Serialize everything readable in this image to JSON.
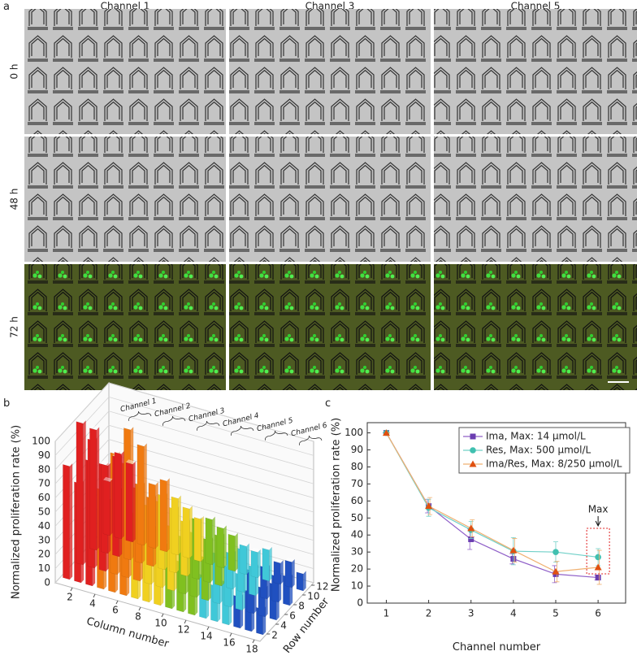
{
  "panel_a": {
    "label": "a",
    "columns": [
      "Channel 1",
      "Channel 3",
      "Channel 5"
    ],
    "rows": [
      "0 h",
      "48 h",
      "72 h"
    ]
  },
  "chart_data": [
    {
      "type": "bar3d",
      "label": "b",
      "zlabel": "Normalized proliferation rate (%)",
      "xlabel": "Column number",
      "ylabel": "Row number",
      "zlim": [
        0,
        100
      ],
      "zticks": [
        0,
        10,
        20,
        30,
        40,
        50,
        60,
        70,
        80,
        90,
        100
      ],
      "xlim": [
        0,
        18
      ],
      "xticks": [
        2,
        4,
        6,
        8,
        10,
        12,
        14,
        16,
        18
      ],
      "ylim": [
        0,
        12
      ],
      "yticks": [
        2,
        4,
        6,
        8,
        10,
        12
      ],
      "groups": [
        "Channel 1",
        "Channel 2",
        "Channel 3",
        "Channel 4",
        "Channel 5",
        "Channel 6"
      ],
      "colors": [
        "#e02020",
        "#f07a10",
        "#f0d020",
        "#80c020",
        "#40c8d8",
        "#2050c0"
      ],
      "values": [
        [
          80,
          70,
          88,
          70,
          65,
          75,
          60,
          50,
          55,
          45,
          35,
          40,
          30,
          25,
          30,
          22,
          28,
          18
        ],
        [
          100,
          90,
          75,
          85,
          80,
          65,
          55,
          60,
          45,
          40,
          45,
          30,
          35,
          28,
          25,
          30,
          20,
          25
        ],
        [
          85,
          62,
          70,
          92,
          55,
          48,
          52,
          45,
          38,
          42,
          30,
          35,
          25,
          30,
          20,
          22,
          18,
          20
        ],
        [
          38,
          60,
          55,
          70,
          45,
          50,
          40,
          35,
          30,
          32,
          28,
          25,
          20,
          18,
          22,
          15,
          18,
          12
        ]
      ]
    },
    {
      "type": "line",
      "label": "c",
      "xlabel": "Channel number",
      "ylabel": "Normalized proliferation rate (%)",
      "x": [
        1,
        2,
        3,
        4,
        5,
        6
      ],
      "xlim": [
        0.55,
        6.65
      ],
      "xticks": [
        1,
        2,
        3,
        4,
        5,
        6
      ],
      "ylim": [
        0,
        106
      ],
      "yticks": [
        0,
        10,
        20,
        30,
        40,
        50,
        60,
        70,
        80,
        90,
        100
      ],
      "series": [
        {
          "name": "Ima, Max: 14 μmol/L",
          "color": "#6a3db0",
          "line_color": "#9060c8",
          "marker": "square",
          "values": [
            100,
            57,
            37.5,
            26,
            17,
            15
          ],
          "errors": [
            0,
            4,
            6,
            3,
            5,
            1.5
          ]
        },
        {
          "name": "Res, Max: 500 μmol/L",
          "color": "#40c0b0",
          "line_color": "#70d0c8",
          "marker": "circle",
          "values": [
            100,
            56,
            43,
            30.5,
            30,
            27
          ],
          "errors": [
            0,
            5,
            5,
            8,
            6,
            5
          ]
        },
        {
          "name": "Ima/Res, Max: 8/250 μmol/L",
          "color": "#e05010",
          "line_color": "#f0b070",
          "marker": "triangle",
          "values": [
            100,
            57,
            44,
            31,
            18.5,
            21
          ],
          "errors": [
            0,
            5,
            5,
            7,
            6,
            10
          ]
        }
      ],
      "annotation": "Max"
    }
  ]
}
